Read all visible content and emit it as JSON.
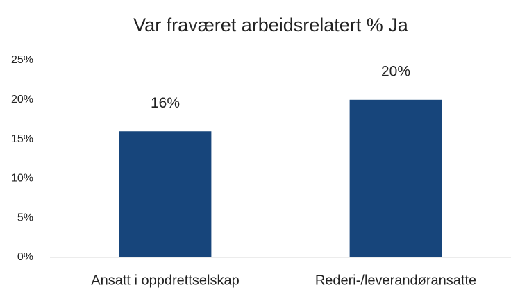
{
  "chart_data": {
    "type": "bar",
    "title": "Var fraværet arbeidsrelatert % Ja",
    "categories": [
      "Ansatt i oppdrettselskap",
      "Rederi-/leverandøransatte"
    ],
    "values": [
      16,
      20
    ],
    "value_labels": [
      "16%",
      "20%"
    ],
    "color": "#17457b",
    "ylim": [
      0,
      25
    ],
    "yticks": [
      {
        "value": 0,
        "label": "0%"
      },
      {
        "value": 5,
        "label": "5%"
      },
      {
        "value": 10,
        "label": "10%"
      },
      {
        "value": 15,
        "label": "15%"
      },
      {
        "value": 20,
        "label": "20%"
      },
      {
        "value": 25,
        "label": "25%"
      }
    ],
    "grid": false
  }
}
